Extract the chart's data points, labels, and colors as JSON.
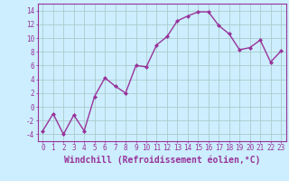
{
  "x": [
    0,
    1,
    2,
    3,
    4,
    5,
    6,
    7,
    8,
    9,
    10,
    11,
    12,
    13,
    14,
    15,
    16,
    17,
    18,
    19,
    20,
    21,
    22,
    23
  ],
  "y": [
    -3.5,
    -1.0,
    -4.0,
    -1.2,
    -3.5,
    1.5,
    4.2,
    3.0,
    2.0,
    6.0,
    5.8,
    9.0,
    10.2,
    12.5,
    13.2,
    13.8,
    13.8,
    11.8,
    10.6,
    8.3,
    8.6,
    9.7,
    6.5,
    8.1
  ],
  "line_color": "#993399",
  "marker": "D",
  "marker_size": 2.0,
  "linewidth": 1.0,
  "bg_color": "#cceeff",
  "grid_color": "#aacccc",
  "xlabel": "Windchill (Refroidissement éolien,°C)",
  "xlabel_color": "#993399",
  "ylim": [
    -5,
    15
  ],
  "xlim": [
    -0.5,
    23.5
  ],
  "yticks": [
    -4,
    -2,
    0,
    2,
    4,
    6,
    8,
    10,
    12,
    14
  ],
  "xtick_labels": [
    "0",
    "1",
    "2",
    "3",
    "4",
    "5",
    "6",
    "7",
    "8",
    "9",
    "10",
    "11",
    "12",
    "13",
    "14",
    "15",
    "16",
    "17",
    "18",
    "19",
    "20",
    "21",
    "22",
    "23"
  ],
  "tick_color": "#993399",
  "tick_fontsize": 5.5,
  "xlabel_fontsize": 7.0,
  "spine_color": "#993399"
}
